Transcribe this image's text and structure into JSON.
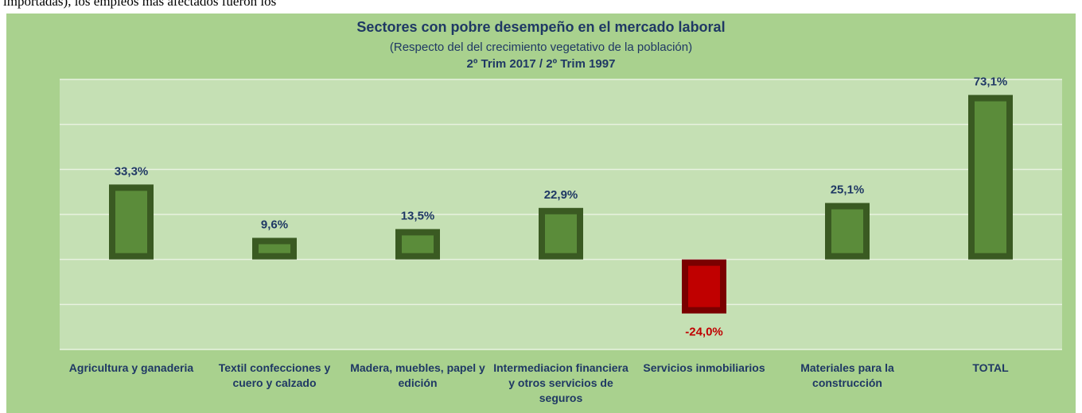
{
  "document_text": "importadas), los empleos más afectados fueron los",
  "chart_data": {
    "type": "bar",
    "title": "Sectores con pobre desempeño en el mercado laboral",
    "subtitle": "(Respecto del del crecimiento vegetativo de la población)",
    "period": "2º Trim 2017 / 2º Trim 1997",
    "categories": [
      "Agricultura y ganaderia",
      "Textil confecciones y cuero y calzado",
      "Madera, muebles, papel y edición",
      "Intermediacion financiera y otros servicios de seguros",
      "Servicios inmobiliarios",
      "Materiales para la construcción",
      "TOTAL"
    ],
    "values": [
      33.3,
      9.6,
      13.5,
      22.9,
      -24.0,
      25.1,
      73.1
    ],
    "value_labels": [
      "33,3%",
      "9,6%",
      "13,5%",
      "22,9%",
      "-24,0%",
      "25,1%",
      "73,1%"
    ],
    "color": "#5b8c3a",
    "negative_color": "#c00000",
    "ylim": [
      -40,
      80
    ],
    "yticks": [
      -40,
      -20,
      0,
      20,
      40,
      60,
      80
    ],
    "grid": true
  }
}
